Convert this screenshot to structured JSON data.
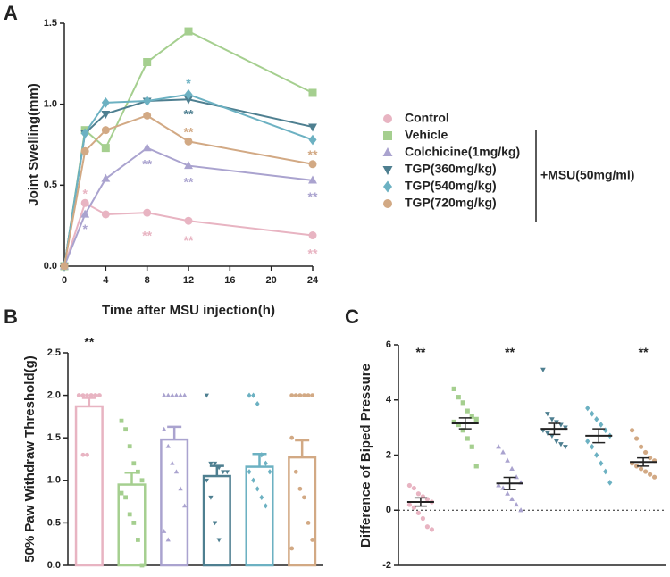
{
  "chart_data": [
    {
      "type": "line",
      "panel": "A",
      "xlabel": "Time after MSU injection(h)",
      "ylabel": "Joint Swelling(mm)",
      "x": [
        0,
        2,
        4,
        8,
        12,
        24
      ],
      "xlim": [
        0,
        24
      ],
      "xticks": [
        0,
        4,
        8,
        12,
        16,
        20,
        24
      ],
      "ylim": [
        0,
        1.5
      ],
      "yticks": [
        {
          "value": 0,
          "label": "0.0"
        },
        {
          "value": 0.5,
          "label": "0.5"
        },
        {
          "value": 1,
          "label": "1.0"
        },
        {
          "value": 1.5,
          "label": "1.5"
        }
      ],
      "series": [
        {
          "name": "Control",
          "color": "#e8b4c2",
          "marker": "circle",
          "values": [
            0,
            0.39,
            0.32,
            0.33,
            0.28,
            0.19
          ]
        },
        {
          "name": "Vehicle",
          "color": "#a5cf8f",
          "marker": "square",
          "values": [
            0,
            0.84,
            0.73,
            1.26,
            1.45,
            1.07
          ]
        },
        {
          "name": "Colchicine(1mg/kg)",
          "color": "#aaa3cf",
          "marker": "triangle",
          "values": [
            0,
            0.32,
            0.54,
            0.73,
            0.62,
            0.53
          ]
        },
        {
          "name": "TGP(360mg/kg)",
          "color": "#4e7f90",
          "marker": "triangle-down",
          "values": [
            0,
            0.82,
            0.94,
            1.02,
            1.03,
            0.86
          ]
        },
        {
          "name": "TGP(540mg/kg)",
          "color": "#6cb1c2",
          "marker": "diamond",
          "values": [
            0,
            0.82,
            1.01,
            1.02,
            1.06,
            0.78
          ]
        },
        {
          "name": "TGP(720mg/kg)",
          "color": "#d2a984",
          "marker": "circle",
          "values": [
            0,
            0.71,
            0.84,
            0.93,
            0.77,
            0.63
          ]
        }
      ],
      "legend_group_label": "+MSU(50mg/ml)",
      "annotations": [
        {
          "text": "*",
          "x": 2,
          "y": 0.46,
          "color": "#e8b4c2"
        },
        {
          "text": "**",
          "x": 8,
          "y": 0.2,
          "color": "#e8b4c2"
        },
        {
          "text": "**",
          "x": 12,
          "y": 0.17,
          "color": "#e8b4c2"
        },
        {
          "text": "**",
          "x": 24,
          "y": 0.09,
          "color": "#e8b4c2"
        },
        {
          "text": "*",
          "x": 2,
          "y": 0.24,
          "color": "#aaa3cf"
        },
        {
          "text": "**",
          "x": 8,
          "y": 0.64,
          "color": "#aaa3cf"
        },
        {
          "text": "**",
          "x": 12,
          "y": 0.53,
          "color": "#aaa3cf"
        },
        {
          "text": "**",
          "x": 24,
          "y": 0.44,
          "color": "#aaa3cf"
        },
        {
          "text": "*",
          "x": 12,
          "y": 1.14,
          "color": "#6cb1c2"
        },
        {
          "text": "**",
          "x": 12,
          "y": 0.95,
          "color": "#4e7f90"
        },
        {
          "text": "**",
          "x": 12,
          "y": 0.84,
          "color": "#d2a984"
        },
        {
          "text": "**",
          "x": 24,
          "y": 0.7,
          "color": "#d2a984"
        }
      ]
    },
    {
      "type": "bar",
      "panel": "B",
      "ylabel": "50% Paw Withdraw Threshold(g)",
      "categories": [
        null,
        null,
        null,
        null,
        null,
        null
      ],
      "ylim": [
        0,
        2.5
      ],
      "yticks": [
        {
          "value": 0,
          "label": "0.0"
        },
        {
          "value": 0.5,
          "label": "0.5"
        },
        {
          "value": 1,
          "label": "1.0"
        },
        {
          "value": 1.5,
          "label": "1.5"
        },
        {
          "value": 2,
          "label": "2.0"
        },
        {
          "value": 2.5,
          "label": "2.5"
        }
      ],
      "values": [
        1.87,
        0.95,
        1.48,
        1.05,
        1.16,
        1.27
      ],
      "errors": [
        0.1,
        0.14,
        0.15,
        0.12,
        0.15,
        0.2
      ],
      "colors": [
        "#e8b4c2",
        "#a5cf8f",
        "#aaa3cf",
        "#4e7f90",
        "#6cb1c2",
        "#d2a984"
      ],
      "markers": [
        "circle",
        "square",
        "triangle",
        "triangle-down",
        "diamond",
        "circle"
      ],
      "points": [
        [
          2,
          2,
          2,
          2,
          2,
          2,
          2,
          1.3,
          1.3,
          2,
          2,
          2
        ],
        [
          1.7,
          1.6,
          1.4,
          1.2,
          1.1,
          1.0,
          0.85,
          0.8,
          0.6,
          0.5,
          0.3,
          0.0
        ],
        [
          2,
          2,
          2,
          2,
          2,
          2,
          1.6,
          1.4,
          1.2,
          1.1,
          0.9,
          0.7,
          0.4,
          0.3
        ],
        [
          2,
          1.2,
          1.2,
          1.15,
          1.1,
          1.1,
          1.0,
          0.8,
          0.5,
          0.3
        ],
        [
          2,
          2,
          1.9,
          1.3,
          1.2,
          1.1,
          1.1,
          1.0,
          0.9,
          0.8,
          0.7
        ],
        [
          2,
          2,
          2,
          2,
          2,
          2,
          1.5,
          1.1,
          0.9,
          0.8,
          0.5,
          0.3,
          0.2
        ]
      ],
      "annotations": [
        {
          "text": "**",
          "x": 0,
          "y": 2.65,
          "color": "#222222"
        }
      ]
    },
    {
      "type": "dot",
      "panel": "C",
      "ylabel": "Difference of Biped Pressure",
      "categories": [
        null,
        null,
        null,
        null,
        null,
        null
      ],
      "ylim": [
        -2,
        6
      ],
      "yticks": [
        -2,
        0,
        2,
        4,
        6
      ],
      "values": [
        0.3,
        3.15,
        0.97,
        2.95,
        2.7,
        1.75
      ],
      "errors": [
        0.15,
        0.2,
        0.22,
        0.2,
        0.25,
        0.15
      ],
      "colors": [
        "#e8b4c2",
        "#a5cf8f",
        "#aaa3cf",
        "#4e7f90",
        "#6cb1c2",
        "#d2a984"
      ],
      "markers": [
        "circle",
        "square",
        "triangle",
        "triangle-down",
        "diamond",
        "circle"
      ],
      "points": [
        [
          0.9,
          0.8,
          0.6,
          0.5,
          0.4,
          0.3,
          0.2,
          0.1,
          -0.1,
          -0.3,
          -0.6,
          -0.7
        ],
        [
          4.4,
          4.1,
          3.9,
          3.6,
          3.4,
          3.3,
          3.2,
          3.1,
          2.9,
          2.6,
          2.3,
          1.6
        ],
        [
          2.3,
          2.1,
          1.8,
          1.5,
          1.2,
          1.0,
          0.9,
          0.8,
          0.6,
          0.4,
          0.2,
          0.0
        ],
        [
          5.1,
          3.5,
          3.3,
          3.2,
          3.1,
          3.0,
          2.9,
          2.8,
          2.7,
          2.5,
          2.4,
          2.3
        ],
        [
          3.7,
          3.5,
          3.3,
          3.1,
          2.9,
          2.7,
          2.5,
          2.3,
          2.0,
          1.7,
          1.4,
          1.0
        ],
        [
          2.9,
          2.6,
          2.3,
          2.1,
          1.9,
          1.8,
          1.7,
          1.6,
          1.5,
          1.4,
          1.3,
          1.2
        ]
      ],
      "zero_line": true,
      "annotations": [
        {
          "text": "**",
          "x": 0,
          "y": 5.8,
          "color": "#222222"
        },
        {
          "text": "**",
          "x": 2,
          "y": 5.8,
          "color": "#222222"
        },
        {
          "text": "**",
          "x": 5,
          "y": 5.8,
          "color": "#222222"
        }
      ]
    }
  ]
}
